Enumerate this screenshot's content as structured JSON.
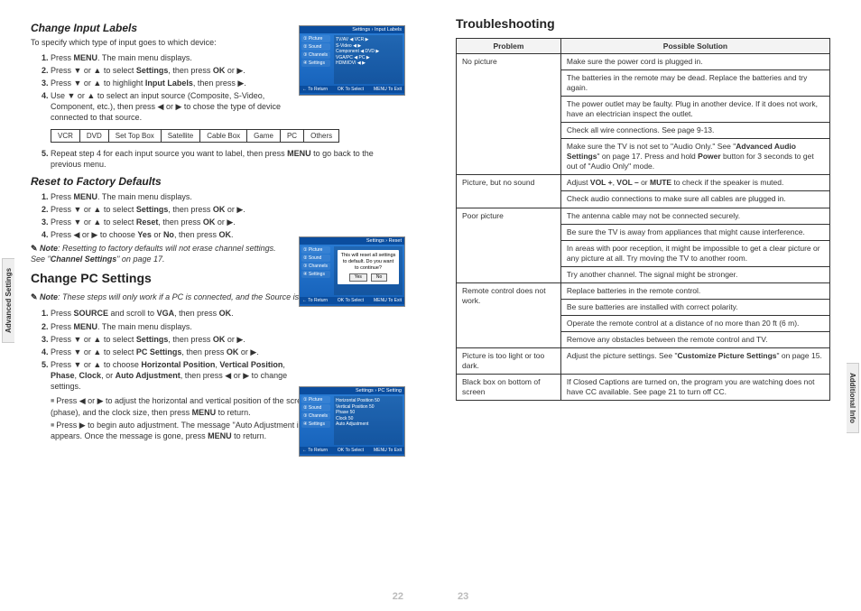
{
  "leftPage": {
    "sideTab": "Advanced Settings",
    "pageNum": "22",
    "section1": {
      "heading": "Change Input Labels",
      "intro": "To specify which type of input goes to which device:",
      "steps": [
        "Press <b>MENU</b>. The main menu displays.",
        "Press ▼ or ▲ to select <b>Settings</b>, then press <b>OK</b> or ▶.",
        "Press ▼ or ▲ to highlight <b>Input Labels</b>, then press ▶.",
        "Use ▼ or ▲ to select an input source (Composite, S-Video, Component, etc.), then press ◀ or ▶ to chose the type of device connected to that source."
      ],
      "table": [
        "VCR",
        "DVD",
        "Set Top Box",
        "Satellite",
        "Cable Box",
        "Game",
        "PC",
        "Others"
      ],
      "step5": "Repeat step 4 for each input source you want to label, then press <b>MENU</b> to go back to the previous menu.",
      "screenshot": {
        "title": "Settings › Input Labels",
        "sidebar": [
          "① Picture",
          "② Sound",
          "③ Channels",
          "④ Settings"
        ],
        "rows": [
          "TV/AV    ◀ VCR ▶",
          "S-Video    ◀ ▶",
          "Component  ◀ DVD ▶",
          "VGA/PC   ◀ PC ▶",
          "HDMI/DVI  ◀ ▶"
        ],
        "footer": [
          "← To Return",
          "OK To Select",
          "MENU To Exit"
        ]
      }
    },
    "section2": {
      "heading": "Reset to Factory Defaults",
      "steps": [
        "Press <b>MENU</b>. The main menu displays.",
        "Press ▼ or ▲ to select <b>Settings</b>, then press <b>OK</b> or ▶.",
        "Press ▼ or ▲ to select <b>Reset</b>, then press <b>OK</b> or ▶.",
        "Press ◀ or ▶ to choose <b>Yes</b> or <b>No</b>, then press <b>OK</b>."
      ],
      "note": "<b>Note</b>: Resetting to factory defaults will not erase channel settings. See \"<b>Channel Settings</b>\" on page 17.",
      "screenshot": {
        "title": "Settings › Reset",
        "sidebar": [
          "① Picture",
          "② Sound",
          "③ Channels",
          "④ Settings"
        ],
        "dialog": {
          "text": "This will reset all settings to default. Do you want to continue?",
          "yes": "Yes",
          "no": "No"
        },
        "footer": [
          "← To Return",
          "OK To Select",
          "MENU To Exit"
        ]
      }
    },
    "section3": {
      "heading": "Change PC Settings",
      "note": "<b>Note</b>: These steps will only work if a PC is connected, and the Source is set to VGA/PC.",
      "steps": [
        "Press <b>SOURCE</b> and scroll to <b>VGA</b>, then press <b>OK</b>.",
        "Press <b>MENU</b>. The main menu displays.",
        "Press ▼ or ▲ to select <b>Settings</b>, then press <b>OK</b> or ▶.",
        "Press ▼ or ▲ to select <b>PC Settings</b>, then press <b>OK</b> or ▶.",
        "Press ▼ or ▲ to choose <b>Horizontal Position</b>, <b>Vertical Position</b>, <b>Phase</b>, <b>Clock</b>, or <b>Auto Adjustment</b>, then press ◀ or ▶ to change settings."
      ],
      "sub": [
        "Press ◀ or ▶ to adjust the horizontal and vertical position of the screen, image stability and focus (phase), and the clock size, then press <b>MENU</b> to return.",
        "Press ▶ to begin auto adjustment. The message \"Auto Adjustment in progress. Please wait...\" appears. Once the message is gone, press <b>MENU</b> to return."
      ],
      "screenshot": {
        "title": "Settings › PC Setting",
        "sidebar": [
          "① Picture",
          "② Sound",
          "③ Channels",
          "④ Settings"
        ],
        "rows": [
          "Horizontal Position   50",
          "Vertical Position   50",
          "Phase   50",
          "Clock   50",
          "Auto Adjustment"
        ],
        "footer": [
          "← To Return",
          "OK To Select",
          "MENU To Exit"
        ]
      }
    }
  },
  "rightPage": {
    "sideTab": "Additional Info",
    "pageNum": "23",
    "heading": "Troubleshooting",
    "tableHeaders": [
      "Problem",
      "Possible Solution"
    ],
    "rows": [
      {
        "p": "No picture",
        "s": "Make sure the power cord is plugged in.",
        "rs": 5
      },
      {
        "s": "The batteries in the remote may be dead. Replace the batteries and try again."
      },
      {
        "s": "The power outlet may be faulty. Plug in another device. If it does not work, have an electrician inspect the outlet."
      },
      {
        "s": "Check all wire connections. See page 9-13."
      },
      {
        "s": "Make sure the TV is not set to \"Audio Only.\" See \"<b>Advanced Audio Settings</b>\" on page 17. Press and hold <b>Power</b> button for 3 seconds to get out of \"Audio Only\" mode."
      },
      {
        "p": "Picture, but no sound",
        "s": "Adjust <b>VOL +</b>, <b>VOL –</b> or <b>MUTE</b> to check if the speaker is muted.",
        "rs": 2
      },
      {
        "s": "Check audio connections to make sure all cables are plugged in."
      },
      {
        "p": "Poor picture",
        "s": "The antenna cable may not be connected securely.",
        "rs": 4
      },
      {
        "s": "Be sure the TV is away from appliances that might cause interference."
      },
      {
        "s": "In areas with poor reception, it might be impossible to get a clear picture or any picture at all. Try moving the TV to another room."
      },
      {
        "s": "Try another channel. The signal might be stronger."
      },
      {
        "p": "Remote control does not work.",
        "s": "Replace batteries in the remote control.",
        "rs": 4
      },
      {
        "s": "Be sure batteries are installed with correct polarity."
      },
      {
        "s": "Operate the remote control at a distance of no more than 20 ft (6 m)."
      },
      {
        "s": "Remove any obstacles between the remote control and TV."
      },
      {
        "p": "Picture is too light or too dark.",
        "s": "Adjust the picture settings. See \"<b>Customize Picture Settings</b>\" on page 15.",
        "rs": 1
      },
      {
        "p": "Black box on bottom of screen",
        "s": "If Closed Captions are turned on, the program you are watching does not have CC available. See page 21 to turn off CC.",
        "rs": 1
      }
    ]
  }
}
